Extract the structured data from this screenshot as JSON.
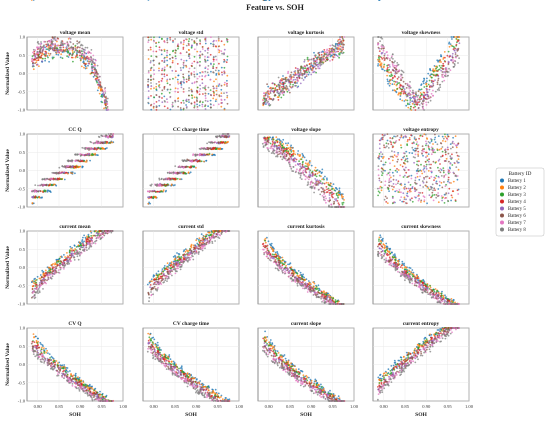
{
  "chart_data": {
    "type": "scatter",
    "title": "Feature vs. SOH",
    "xlabel": "SOH",
    "ylabel": "Normalized Value",
    "xlim": [
      0.775,
      1.0
    ],
    "ylim": [
      -1.0,
      1.0
    ],
    "x_ticks": [
      "0.80",
      "0.85",
      "0.90",
      "0.95",
      "1.00"
    ],
    "y_ticks": [
      "1.0",
      "0.5",
      "0.0",
      "-0.5",
      "-1.0"
    ],
    "grid": true,
    "legend_position": "right",
    "legend": {
      "title": "Battery ID",
      "series": [
        {
          "name": "Battery 1",
          "color": "#1f77b4"
        },
        {
          "name": "Battery 2",
          "color": "#ff7f0e"
        },
        {
          "name": "Battery 3",
          "color": "#2ca02c"
        },
        {
          "name": "Battery 4",
          "color": "#d62728"
        },
        {
          "name": "Battery 5",
          "color": "#9467bd"
        },
        {
          "name": "Battery 6",
          "color": "#8c564b"
        },
        {
          "name": "Battery 7",
          "color": "#e377c2"
        },
        {
          "name": "Battery 8",
          "color": "#7f7f7f"
        }
      ]
    },
    "panels": [
      {
        "title": "voltage mean",
        "pattern": "cloud-hump"
      },
      {
        "title": "voltage std",
        "pattern": "vertical-streaks"
      },
      {
        "title": "voltage kurtosis",
        "pattern": "rising-cloud"
      },
      {
        "title": "voltage skewness",
        "pattern": "v-shape"
      },
      {
        "title": "CC Q",
        "pattern": "steps"
      },
      {
        "title": "CC charge time",
        "pattern": "steps"
      },
      {
        "title": "voltage slope",
        "pattern": "descending-curves"
      },
      {
        "title": "voltage entropy",
        "pattern": "noise"
      },
      {
        "title": "current mean",
        "pattern": "rising-curves"
      },
      {
        "title": "current std",
        "pattern": "rising-curves"
      },
      {
        "title": "current kurtosis",
        "pattern": "falling-curves"
      },
      {
        "title": "current skewness",
        "pattern": "falling-curves"
      },
      {
        "title": "CV Q",
        "pattern": "falling-curves"
      },
      {
        "title": "CV charge time",
        "pattern": "falling-curves"
      },
      {
        "title": "current slope",
        "pattern": "falling-curves"
      },
      {
        "title": "current entropy",
        "pattern": "rising-curves"
      }
    ]
  }
}
